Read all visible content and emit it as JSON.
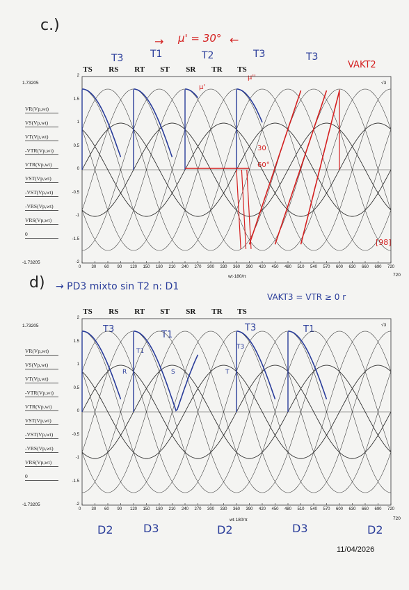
{
  "panel_c": {
    "label": "c.)",
    "title_note": "μ' = 30°",
    "arrow_left": "→",
    "arrow_right": "←",
    "top_labels": [
      "T3",
      "T1",
      "T2",
      "T3",
      "T3"
    ],
    "vakt_label": "VAKT2",
    "phases": [
      "TS",
      "RS",
      "RT",
      "ST",
      "SR",
      "TR",
      "TS"
    ],
    "ymax": "1.73205",
    "ymin": "-1.73205",
    "y_ticks": [
      "2",
      "1.5",
      "1",
      "0.5",
      "0",
      "-0.5",
      "-1",
      "-1.5",
      "-2"
    ],
    "y_names": [
      "VR(Vp,wt)",
      "VS(Vp,wt)",
      "VT(Vp,wt)",
      "-VTR(Vp,wt)",
      "VTR(Vp,wt)",
      "VST(Vp,wt)",
      "-VST(Vp,wt)",
      "-VRS(Vp,wt)",
      "VRS(Vp,wt)",
      "0"
    ],
    "x_ticks": [
      "0",
      "30",
      "60",
      "90",
      "120",
      "150",
      "180",
      "210",
      "240",
      "270",
      "300",
      "330",
      "360",
      "390",
      "420",
      "450",
      "480",
      "510",
      "540",
      "570",
      "600",
      "630",
      "660",
      "690",
      "720"
    ],
    "x_end": "720",
    "x_expr": "wt·180/π",
    "angle_note": "60°",
    "angle_note2": "30",
    "mu_note": "μ'",
    "mu_note2": "μ''",
    "box_note": "[98]",
    "corner_note": "√3"
  },
  "panel_d": {
    "label": "d)",
    "title_note": "→ PD3 mixto sin T2 n: D1",
    "vakt_label": "VAKT3 = VTR ≥ 0 r",
    "top_labels": [
      "T3",
      "T1",
      "T3",
      "T1"
    ],
    "mid_labels": [
      "T1",
      "R",
      "S",
      "T",
      "T3"
    ],
    "phases": [
      "TS",
      "RS",
      "RT",
      "ST",
      "SR",
      "TR",
      "TS"
    ],
    "ymax": "1.73205",
    "ymin": "-1.73205",
    "y_ticks": [
      "2",
      "1.5",
      "1",
      "0.5",
      "0",
      "-0.5",
      "-1",
      "-1.5",
      "-2"
    ],
    "y_names": [
      "VR(Vp,wt)",
      "VS(Vp,wt)",
      "VT(Vp,wt)",
      "-VTR(Vp,wt)",
      "VTR(Vp,wt)",
      "VST(Vp,wt)",
      "-VST(Vp,wt)",
      "-VRS(Vp,wt)",
      "VRS(Vp,wt)",
      "0"
    ],
    "x_ticks": [
      "0",
      "30",
      "60",
      "90",
      "120",
      "150",
      "180",
      "210",
      "240",
      "270",
      "300",
      "330",
      "360",
      "390",
      "420",
      "450",
      "480",
      "510",
      "540",
      "570",
      "600",
      "630",
      "660",
      "690",
      "720"
    ],
    "x_end": "720",
    "x_expr": "wt·180/π",
    "bottom_labels": [
      "D2",
      "D3",
      "D2",
      "D3",
      "D2"
    ],
    "corner_note": "√3"
  },
  "date": "11/04/2026"
}
